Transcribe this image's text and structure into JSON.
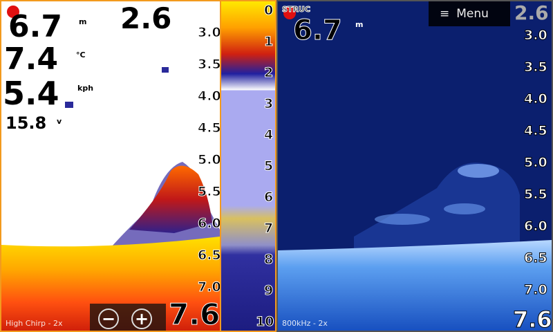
{
  "left_pane": {
    "depth": "6.7",
    "depth_unit": "m",
    "temperature": "7.4",
    "temp_unit": "°C",
    "speed": "5.4",
    "speed_unit": "kph",
    "voltage": "15.8",
    "voltage_unit": "v",
    "range_top": "2.6",
    "range_bottom": "7.6",
    "scale": [
      "3.0",
      "3.5",
      "4.0",
      "4.5",
      "5.0",
      "5.5",
      "6.0",
      "6.5",
      "7.0"
    ],
    "frequency": "High Chirp - 2x",
    "zoom_out_label": "−",
    "zoom_in_label": "+",
    "flasher_scale": [
      "0",
      "1",
      "2",
      "3",
      "4",
      "5",
      "6",
      "7",
      "8",
      "9",
      "10"
    ]
  },
  "right_pane": {
    "mode": "STRUC",
    "depth": "6.7",
    "depth_unit": "m",
    "menu_label": "Menu",
    "menu_icon": "hamburger-icon",
    "range_top": "2.6",
    "range_bottom": "7.6",
    "scale": [
      "3.0",
      "3.5",
      "4.0",
      "4.5",
      "5.0",
      "5.5",
      "6.0",
      "6.5",
      "7.0"
    ],
    "frequency": "800kHz - 2x"
  },
  "colors": {
    "border": "#f39a1e",
    "record_dot": "#e01010"
  }
}
